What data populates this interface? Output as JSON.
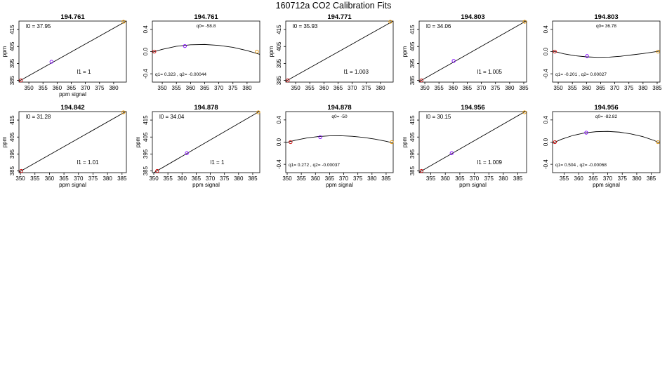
{
  "figure": {
    "title": "160712a   CO2 Calibration Fits"
  },
  "chart_data": [
    {
      "type": "line",
      "title": "194.761",
      "kind": "linear",
      "xlabel": "ppm signal",
      "ylabel": "ppm",
      "xlim": [
        346.5,
        384.5
      ],
      "ylim": [
        384,
        420
      ],
      "xticks": [
        350,
        355,
        360,
        365,
        370,
        375,
        380
      ],
      "yticks": [
        385,
        395,
        405,
        415
      ],
      "points": [
        {
          "x": 347.2,
          "y": 385.0,
          "color": "#cc0000"
        },
        {
          "x": 358.0,
          "y": 396.0,
          "color": "#8000ff"
        },
        {
          "x": 383.5,
          "y": 419.6,
          "color": "#e69500"
        }
      ],
      "fit": {
        "x": [
          346.5,
          384.5
        ],
        "y": [
          384.5,
          420.0
        ]
      },
      "annotations": [
        {
          "id": "l0",
          "text": "l0 =  37.95"
        },
        {
          "id": "l1",
          "text": "l1 =  1"
        }
      ]
    },
    {
      "type": "line",
      "title": "194.761",
      "kind": "quadratic",
      "xlabel": "",
      "ylabel": "",
      "xlim": [
        346.5,
        384.5
      ],
      "ylim": [
        -0.55,
        0.55
      ],
      "xticks": [
        350,
        355,
        360,
        365,
        370,
        375,
        380
      ],
      "yticks": [
        -0.4,
        0.0,
        0.4
      ],
      "points": [
        {
          "x": 347.2,
          "y": 0.0,
          "color": "#cc0000"
        },
        {
          "x": 358.0,
          "y": 0.1,
          "color": "#8000ff"
        },
        {
          "x": 383.5,
          "y": 0.0,
          "color": "#e69500"
        }
      ],
      "fit": {
        "x": [
          346.5,
          350,
          355,
          360,
          365,
          370,
          375,
          380,
          384.5
        ],
        "y": [
          -0.01,
          0.04,
          0.095,
          0.122,
          0.128,
          0.112,
          0.077,
          0.018,
          -0.05
        ]
      },
      "annotations": [
        {
          "id": "q0",
          "text": "q0= -58.8"
        },
        {
          "id": "q12",
          "text": "q1= 0.323 , q2= -0.00044"
        }
      ]
    },
    {
      "type": "line",
      "title": "194.771",
      "kind": "linear",
      "xlabel": "",
      "ylabel": "ppm",
      "xlim": [
        346.5,
        384.5
      ],
      "ylim": [
        384,
        420
      ],
      "xticks": [
        350,
        355,
        360,
        365,
        370,
        375,
        380
      ],
      "yticks": [
        385,
        395,
        405,
        415
      ],
      "points": [
        {
          "x": 347.2,
          "y": 385.0,
          "color": "#cc0000"
        },
        {
          "x": 383.5,
          "y": 419.6,
          "color": "#e69500"
        }
      ],
      "fit": {
        "x": [
          346.5,
          384.5
        ],
        "y": [
          384.5,
          420.0
        ]
      },
      "annotations": [
        {
          "id": "l0",
          "text": "l0 =  35.93"
        },
        {
          "id": "l1",
          "text": "l1 =  1.003"
        }
      ]
    },
    {
      "type": "line",
      "title": "194.803",
      "kind": "linear",
      "xlabel": "",
      "ylabel": "ppm",
      "xlim": [
        348,
        386
      ],
      "ylim": [
        384,
        420
      ],
      "xticks": [
        350,
        355,
        360,
        365,
        370,
        375,
        380,
        385
      ],
      "yticks": [
        385,
        395,
        405,
        415
      ],
      "points": [
        {
          "x": 348.8,
          "y": 385.0,
          "color": "#cc0000"
        },
        {
          "x": 360.2,
          "y": 396.5,
          "color": "#8000ff"
        },
        {
          "x": 385.3,
          "y": 419.6,
          "color": "#e69500"
        }
      ],
      "fit": {
        "x": [
          348,
          386
        ],
        "y": [
          384.3,
          420.2
        ]
      },
      "annotations": [
        {
          "id": "l0",
          "text": "l0 =  34.06"
        },
        {
          "id": "l1",
          "text": "l1 =  1.005"
        }
      ]
    },
    {
      "type": "line",
      "title": "194.803",
      "kind": "quadratic",
      "xlabel": "",
      "ylabel": "",
      "xlim": [
        348,
        386
      ],
      "ylim": [
        -0.55,
        0.55
      ],
      "xticks": [
        350,
        355,
        360,
        365,
        370,
        375,
        380,
        385
      ],
      "yticks": [
        -0.4,
        0.0,
        0.4
      ],
      "points": [
        {
          "x": 348.8,
          "y": 0.0,
          "color": "#cc0000"
        },
        {
          "x": 360.2,
          "y": -0.08,
          "color": "#8000ff"
        },
        {
          "x": 385.3,
          "y": 0.0,
          "color": "#e69500"
        }
      ],
      "fit": {
        "x": [
          348,
          352,
          356,
          360,
          364,
          368,
          372,
          376,
          380,
          384,
          386
        ],
        "y": [
          0.01,
          -0.04,
          -0.075,
          -0.095,
          -0.104,
          -0.1,
          -0.085,
          -0.06,
          -0.035,
          -0.005,
          0.01
        ]
      },
      "annotations": [
        {
          "id": "q0",
          "text": "q0= 36.78"
        },
        {
          "id": "q12",
          "text": "q1= -0.201 , q2= 0.00027"
        }
      ]
    },
    {
      "type": "line",
      "title": "194.842",
      "kind": "linear",
      "xlabel": "ppm signal",
      "ylabel": "ppm",
      "xlim": [
        349.5,
        386.5
      ],
      "ylim": [
        384,
        420
      ],
      "xticks": [
        350,
        355,
        360,
        365,
        370,
        375,
        380,
        385
      ],
      "yticks": [
        385,
        395,
        405,
        415
      ],
      "points": [
        {
          "x": 350.3,
          "y": 385.0,
          "color": "#cc0000"
        },
        {
          "x": 385.5,
          "y": 419.6,
          "color": "#e69500"
        }
      ],
      "fit": {
        "x": [
          349.5,
          386.5
        ],
        "y": [
          384.3,
          420.2
        ]
      },
      "annotations": [
        {
          "id": "l0",
          "text": "l0 =  31.28"
        },
        {
          "id": "l1",
          "text": "l1 =  1.01"
        }
      ]
    },
    {
      "type": "line",
      "title": "194.878",
      "kind": "linear",
      "xlabel": "ppm signal",
      "ylabel": "ppm",
      "xlim": [
        349.5,
        387.5
      ],
      "ylim": [
        384,
        420
      ],
      "xticks": [
        350,
        355,
        360,
        365,
        370,
        375,
        380,
        385
      ],
      "yticks": [
        385,
        395,
        405,
        415
      ],
      "points": [
        {
          "x": 351.2,
          "y": 385.0,
          "color": "#cc0000"
        },
        {
          "x": 361.7,
          "y": 395.5,
          "color": "#8000ff"
        },
        {
          "x": 387.0,
          "y": 419.6,
          "color": "#e69500"
        }
      ],
      "fit": {
        "x": [
          349.5,
          387.5
        ],
        "y": [
          383.5,
          420.2
        ]
      },
      "annotations": [
        {
          "id": "l0",
          "text": "l0 =  34.04"
        },
        {
          "id": "l1",
          "text": "l1 =  1"
        }
      ]
    },
    {
      "type": "line",
      "title": "194.878",
      "kind": "quadratic",
      "xlabel": "ppm signal",
      "ylabel": "",
      "xlim": [
        349.5,
        387.5
      ],
      "ylim": [
        -0.55,
        0.55
      ],
      "xticks": [
        350,
        355,
        360,
        365,
        370,
        375,
        380,
        385
      ],
      "yticks": [
        -0.4,
        0.0,
        0.4
      ],
      "points": [
        {
          "x": 351.2,
          "y": 0.0,
          "color": "#cc0000"
        },
        {
          "x": 361.7,
          "y": 0.09,
          "color": "#8000ff"
        },
        {
          "x": 387.0,
          "y": 0.0,
          "color": "#e69500"
        }
      ],
      "fit": {
        "x": [
          349.5,
          353,
          357,
          361,
          365,
          369,
          373,
          377,
          381,
          385,
          387.5
        ],
        "y": [
          -0.01,
          0.035,
          0.075,
          0.1,
          0.113,
          0.115,
          0.105,
          0.085,
          0.055,
          0.015,
          -0.015
        ]
      },
      "annotations": [
        {
          "id": "q0",
          "text": "q0= -50"
        },
        {
          "id": "q12",
          "text": "q1= 0.272 , q2= -0.00037"
        }
      ]
    },
    {
      "type": "line",
      "title": "194.956",
      "kind": "linear",
      "xlabel": "ppm signal",
      "ylabel": "ppm",
      "xlim": [
        351,
        388
      ],
      "ylim": [
        384,
        420
      ],
      "xticks": [
        355,
        360,
        365,
        370,
        375,
        380,
        385
      ],
      "yticks": [
        385,
        395,
        405,
        415
      ],
      "points": [
        {
          "x": 351.8,
          "y": 385.0,
          "color": "#cc0000"
        },
        {
          "x": 362.2,
          "y": 395.5,
          "color": "#8000ff"
        },
        {
          "x": 387.3,
          "y": 419.6,
          "color": "#e69500"
        }
      ],
      "fit": {
        "x": [
          351,
          388
        ],
        "y": [
          384.2,
          420.5
        ]
      },
      "annotations": [
        {
          "id": "l0",
          "text": "l0 =  30.15"
        },
        {
          "id": "l1",
          "text": "l1 =  1.009"
        }
      ]
    },
    {
      "type": "line",
      "title": "194.956",
      "kind": "quadratic",
      "xlabel": "ppm signal",
      "ylabel": "",
      "xlim": [
        351,
        388
      ],
      "ylim": [
        -0.55,
        0.55
      ],
      "xticks": [
        355,
        360,
        365,
        370,
        375,
        380,
        385
      ],
      "yticks": [
        -0.4,
        0.0,
        0.4
      ],
      "points": [
        {
          "x": 351.8,
          "y": 0.0,
          "color": "#cc0000"
        },
        {
          "x": 362.6,
          "y": 0.17,
          "color": "#8000ff"
        },
        {
          "x": 387.3,
          "y": 0.0,
          "color": "#e69500"
        }
      ],
      "fit": {
        "x": [
          351,
          354,
          358,
          362,
          366,
          370,
          374,
          378,
          382,
          386,
          388
        ],
        "y": [
          -0.02,
          0.05,
          0.12,
          0.165,
          0.188,
          0.193,
          0.18,
          0.148,
          0.1,
          0.03,
          -0.02
        ]
      },
      "annotations": [
        {
          "id": "q0",
          "text": "q0= -82.82"
        },
        {
          "id": "q12",
          "text": "q1= 0.504 , q2= -0.00068"
        }
      ]
    }
  ]
}
